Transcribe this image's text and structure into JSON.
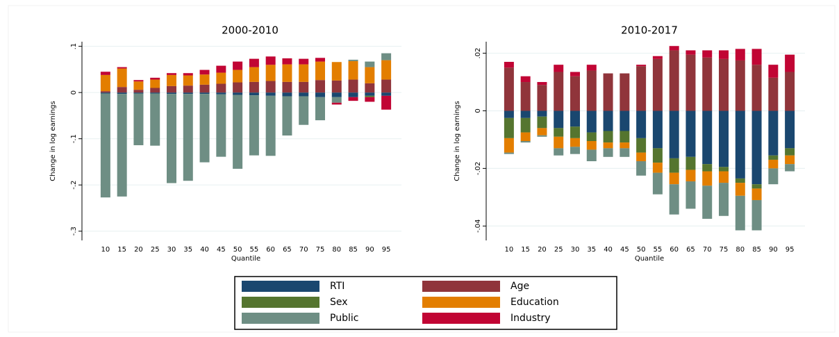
{
  "chart_data": [
    {
      "type": "stacked-bar",
      "title": "2000-2010",
      "y_label": "Change in log earnings",
      "x_label": "Quantile",
      "categories": [
        "10",
        "15",
        "20",
        "25",
        "30",
        "35",
        "40",
        "45",
        "50",
        "55",
        "60",
        "65",
        "70",
        "75",
        "80",
        "85",
        "90",
        "95"
      ],
      "ylim": [
        -0.32,
        0.11
      ],
      "yticks": [
        {
          "value": 0.1,
          "label": ".1"
        },
        0,
        {
          "value": -0.1,
          "label": "-.1"
        },
        {
          "value": -0.2,
          "label": "-.2"
        },
        {
          "value": -0.3,
          "label": "-.3"
        }
      ],
      "grid": true,
      "series": [
        {
          "name": "RTI",
          "color": "#1a476f",
          "values": [
            -0.002,
            -0.003,
            -0.002,
            -0.002,
            -0.003,
            -0.003,
            -0.003,
            -0.004,
            -0.005,
            -0.006,
            -0.007,
            -0.008,
            -0.008,
            -0.01,
            -0.01,
            -0.01,
            -0.007,
            -0.007
          ]
        },
        {
          "name": "Age",
          "color": "#90353b",
          "values": [
            0.003,
            0.012,
            0.006,
            0.01,
            0.014,
            0.015,
            0.017,
            0.019,
            0.022,
            0.023,
            0.025,
            0.023,
            0.023,
            0.027,
            0.026,
            0.028,
            0.02,
            0.028
          ]
        },
        {
          "name": "Sex",
          "color": "#55752f",
          "values": [
            0,
            0,
            0,
            0,
            0,
            0,
            0,
            0,
            0,
            0,
            0,
            0,
            0,
            0,
            0,
            0,
            -0.003,
            0
          ]
        },
        {
          "name": "Education",
          "color": "#e37e00",
          "values": [
            0.035,
            0.04,
            0.018,
            0.018,
            0.024,
            0.022,
            0.022,
            0.024,
            0.027,
            0.032,
            0.035,
            0.038,
            0.038,
            0.04,
            0.04,
            0.04,
            0.035,
            0.042
          ]
        },
        {
          "name": "Public",
          "color": "#6e8e84",
          "values": [
            -0.225,
            -0.222,
            -0.112,
            -0.113,
            -0.193,
            -0.188,
            -0.148,
            -0.135,
            -0.16,
            -0.13,
            -0.13,
            -0.085,
            -0.062,
            -0.05,
            -0.012,
            0.003,
            0.012,
            0.015
          ]
        },
        {
          "name": "Industry",
          "color": "#c10534",
          "values": [
            0.007,
            0.003,
            0.003,
            0.004,
            0.004,
            0.005,
            0.01,
            0.015,
            0.018,
            0.018,
            0.018,
            0.013,
            0.012,
            0.008,
            -0.004,
            -0.008,
            -0.01,
            -0.03
          ]
        }
      ]
    },
    {
      "type": "stacked-bar",
      "title": "2010-2017",
      "y_label": "Change in log earnings",
      "x_label": "Quantile",
      "categories": [
        "10",
        "15",
        "20",
        "25",
        "30",
        "35",
        "40",
        "45",
        "50",
        "55",
        "60",
        "65",
        "70",
        "75",
        "80",
        "85",
        "90",
        "95"
      ],
      "ylim": [
        -0.045,
        0.024
      ],
      "yticks": [
        {
          "value": 0.02,
          "label": ".02"
        },
        0,
        {
          "value": -0.02,
          "label": "-.02"
        },
        {
          "value": -0.04,
          "label": "-.04"
        }
      ],
      "grid": true,
      "series": [
        {
          "name": "RTI",
          "color": "#1a476f",
          "values": [
            -0.0025,
            -0.0025,
            -0.002,
            -0.006,
            -0.0055,
            -0.0075,
            -0.007,
            -0.007,
            -0.0095,
            -0.013,
            -0.0165,
            -0.016,
            -0.0185,
            -0.0195,
            -0.0235,
            -0.0255,
            -0.0155,
            -0.013
          ]
        },
        {
          "name": "Age",
          "color": "#90353b",
          "values": [
            0.015,
            0.01,
            0.009,
            0.0135,
            0.012,
            0.014,
            0.013,
            0.013,
            0.0155,
            0.018,
            0.021,
            0.0195,
            0.0185,
            0.018,
            0.0175,
            0.016,
            0.0115,
            0.0135
          ]
        },
        {
          "name": "Sex",
          "color": "#55752f",
          "values": [
            -0.007,
            -0.005,
            -0.004,
            -0.003,
            -0.004,
            -0.003,
            -0.004,
            -0.004,
            -0.005,
            -0.005,
            -0.005,
            -0.0045,
            -0.0025,
            -0.0015,
            -0.0015,
            -0.0015,
            -0.0015,
            -0.0025
          ]
        },
        {
          "name": "Education",
          "color": "#e37e00",
          "values": [
            -0.005,
            -0.003,
            -0.0025,
            -0.004,
            -0.003,
            -0.003,
            -0.002,
            -0.002,
            -0.003,
            -0.0035,
            -0.004,
            -0.004,
            -0.005,
            -0.004,
            -0.0045,
            -0.004,
            -0.003,
            -0.003
          ]
        },
        {
          "name": "Public",
          "color": "#6e8e84",
          "values": [
            -0.0005,
            -0.0005,
            -0.0005,
            -0.0025,
            -0.0025,
            -0.004,
            -0.003,
            -0.003,
            -0.005,
            -0.0075,
            -0.0105,
            -0.0095,
            -0.0115,
            -0.0115,
            -0.012,
            -0.0105,
            -0.0055,
            -0.0025
          ]
        },
        {
          "name": "Industry",
          "color": "#c10534",
          "values": [
            0.002,
            0.002,
            0.001,
            0.0025,
            0.0015,
            0.002,
            0,
            0,
            0.0005,
            0.001,
            0.0015,
            0.0015,
            0.0025,
            0.003,
            0.004,
            0.0055,
            0.0045,
            0.006
          ]
        }
      ]
    }
  ]
}
